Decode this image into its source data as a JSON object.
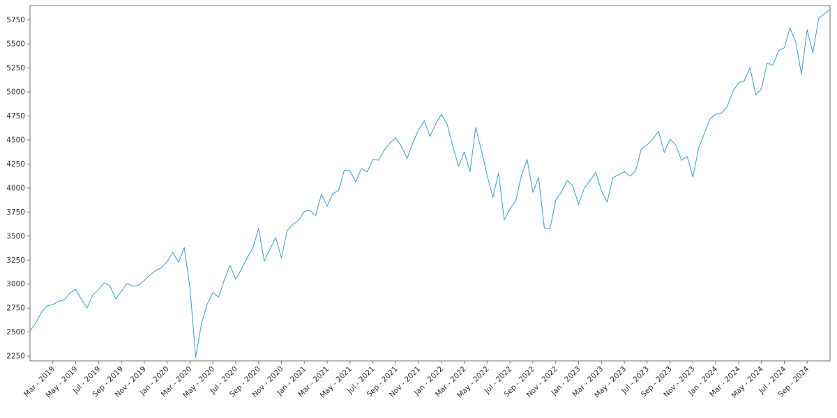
{
  "chart_data": {
    "type": "line",
    "title": "",
    "xlabel": "",
    "ylabel": "",
    "grid": "off",
    "legend": "none",
    "line_color": "#41a6d9",
    "axis_color": "#737373",
    "tick_label_color": "#2b2b2b",
    "ylim": [
      2200,
      5900
    ],
    "y_tick_values": [
      2250,
      2500,
      2750,
      3000,
      3250,
      3500,
      3750,
      4000,
      4250,
      4500,
      4750,
      5000,
      5250,
      5500,
      5750
    ],
    "x_tick_labels": [
      "Mar - 2019",
      "May - 2019",
      "Jul - 2019",
      "Sep - 2019",
      "Nov - 2019",
      "Jan - 2020",
      "Mar - 2020",
      "May - 2020",
      "Jul - 2020",
      "Sep - 2020",
      "Nov - 2020",
      "Jan - 2021",
      "Mar - 2021",
      "May - 2021",
      "Jul - 2021",
      "Sep - 2021",
      "Nov - 2021",
      "Jan - 2022",
      "Mar - 2022",
      "May - 2022",
      "Jul - 2022",
      "Sep - 2022",
      "Nov - 2022",
      "Jan - 2023",
      "Mar - 2023",
      "May - 2023",
      "Jul - 2023",
      "Sep - 2023",
      "Nov - 2023",
      "Jan - 2024",
      "Mar - 2024",
      "May - 2024",
      "Jul - 2024",
      "Sep - 2024"
    ],
    "x_first_tick_point_index": 4,
    "x_tick_point_step": 4,
    "x_points_per_month": 2,
    "x_range_note": "semimonthly points from Jan 2019 through mid-Oct 2024",
    "values": [
      2510,
      2596,
      2704,
      2775,
      2784,
      2822,
      2834,
      2907,
      2946,
      2840,
      2752,
      2887,
      2942,
      3014,
      2980,
      2847,
      2926,
      3007,
      2977,
      2986,
      3038,
      3094,
      3141,
      3169,
      3231,
      3330,
      3226,
      3380,
      2954,
      2237,
      2585,
      2790,
      2912,
      2864,
      3044,
      3193,
      3050,
      3155,
      3271,
      3373,
      3580,
      3237,
      3363,
      3484,
      3270,
      3558,
      3622,
      3663,
      3756,
      3768,
      3714,
      3935,
      3811,
      3943,
      3973,
      4185,
      4181,
      4063,
      4204,
      4166,
      4298,
      4290,
      4395,
      4468,
      4523,
      4433,
      4308,
      4471,
      4605,
      4700,
      4538,
      4669,
      4766,
      4663,
      4431,
      4226,
      4374,
      4171,
      4631,
      4392,
      4132,
      3901,
      4158,
      3667,
      3785,
      3863,
      4130,
      4297,
      3955,
      4110,
      3586,
      3577,
      3872,
      3958,
      4080,
      4020,
      3829,
      3999,
      4077,
      4164,
      3970,
      3855,
      4109,
      4138,
      4169,
      4124,
      4180,
      4410,
      4450,
      4510,
      4589,
      4370,
      4508,
      4450,
      4288,
      4328,
      4117,
      4415,
      4568,
      4719,
      4770,
      4780,
      4846,
      5006,
      5096,
      5117,
      5254,
      4967,
      5036,
      5303,
      5278,
      5431,
      5460,
      5667,
      5522,
      5186,
      5648,
      5408,
      5762,
      5815,
      5860
    ]
  }
}
